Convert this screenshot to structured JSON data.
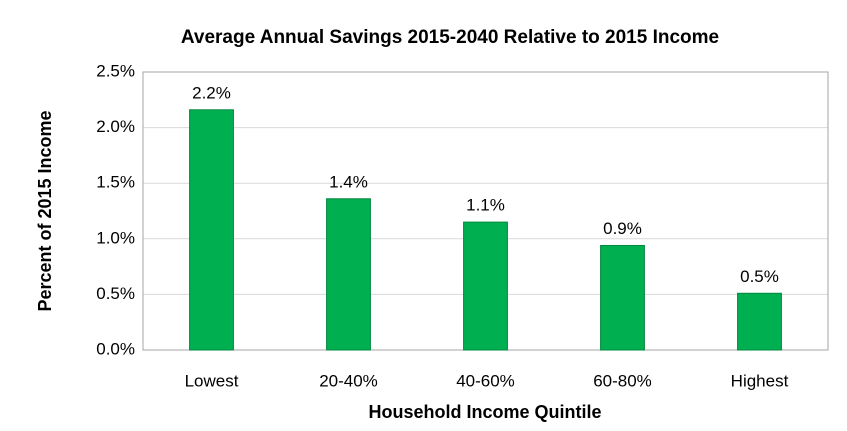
{
  "chart_data": {
    "type": "bar",
    "title": "Average Annual Savings 2015-2040 Relative to 2015 Income",
    "x_label": "Household Income Quintile",
    "y_label": "Percent of 2015 Income",
    "categories": [
      "Lowest",
      "20-40%",
      "40-60%",
      "60-80%",
      "Highest"
    ],
    "values": [
      2.16,
      1.36,
      1.15,
      0.94,
      0.51
    ],
    "value_labels": [
      "2.2%",
      "1.4%",
      "1.1%",
      "0.9%",
      "0.5%"
    ],
    "color": "#00b050",
    "ylim": [
      0,
      2.5
    ],
    "yticks": [
      {
        "value": 0,
        "label": "0.0%"
      },
      {
        "value": 0.5,
        "label": "0.5%"
      },
      {
        "value": 1,
        "label": "1.0%"
      },
      {
        "value": 1.5,
        "label": "1.5%"
      },
      {
        "value": 2,
        "label": "2.0%"
      },
      {
        "value": 2.5,
        "label": "2.5%"
      }
    ],
    "grid": true
  }
}
